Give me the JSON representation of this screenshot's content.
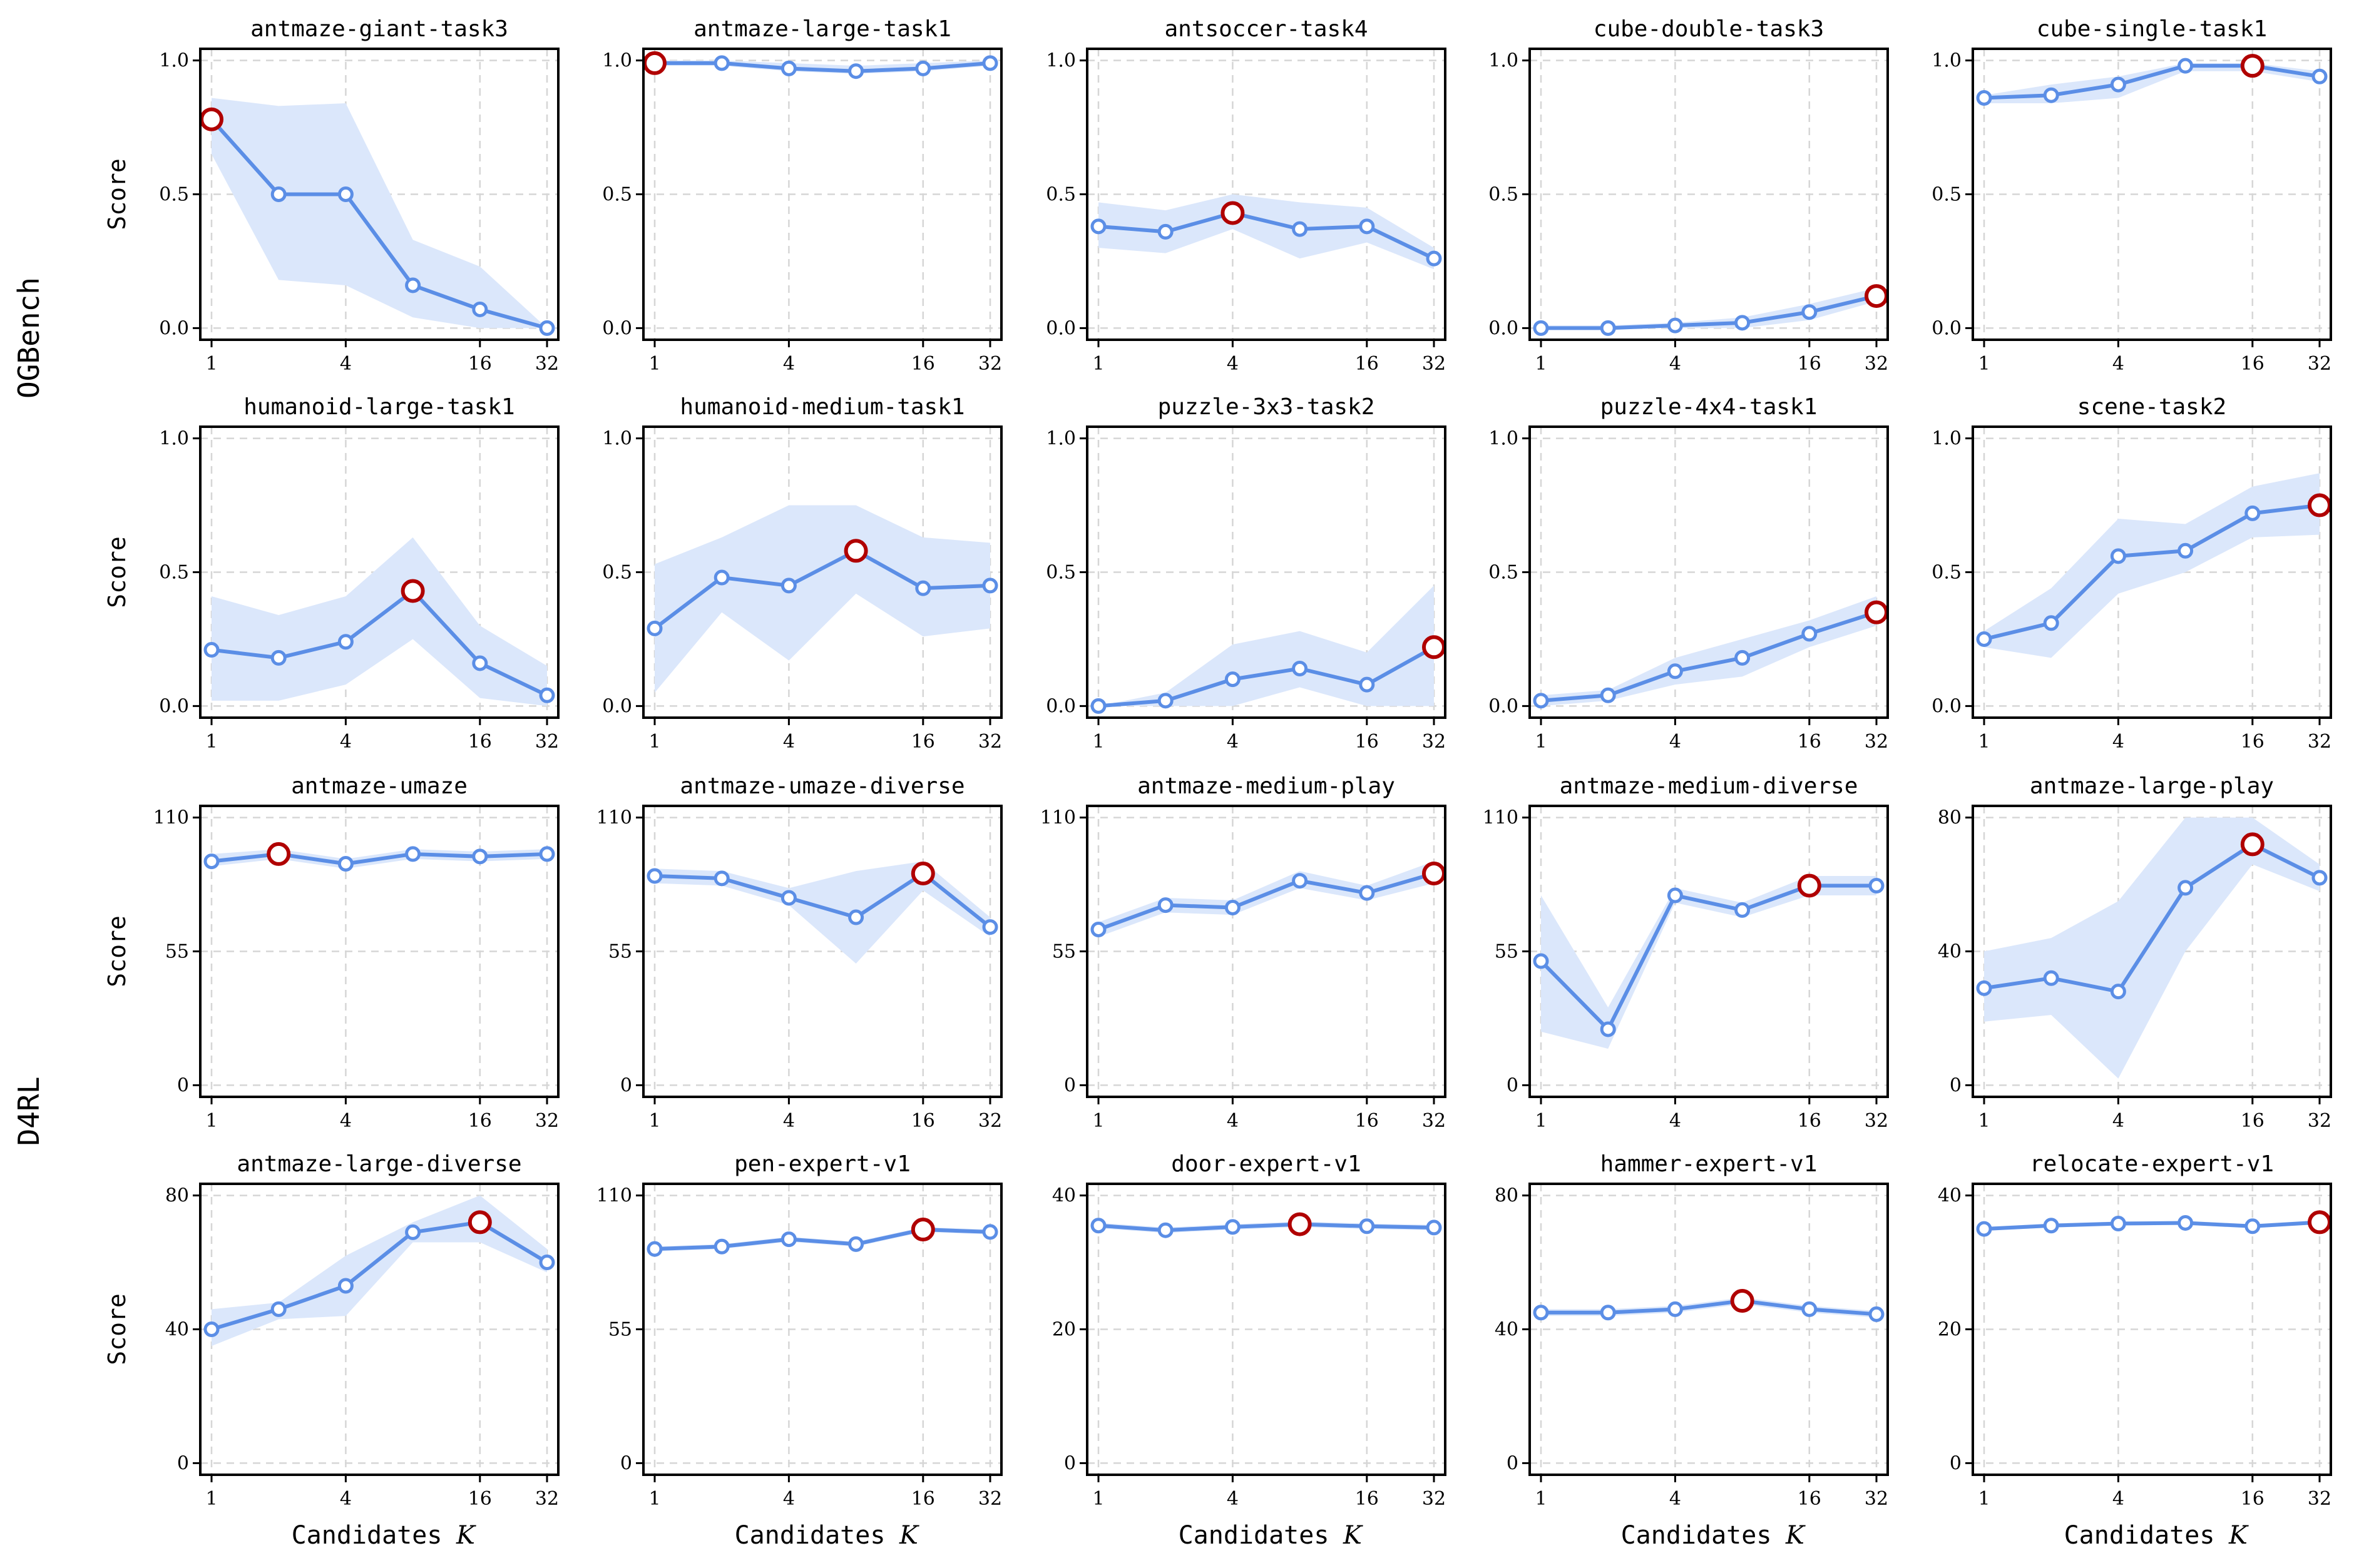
{
  "colors": {
    "line": "#5b8ee6",
    "band": "#dbe7fb",
    "best": "#b00000",
    "grid": "#d6d6d6",
    "frame": "#000000"
  },
  "labels": {
    "ylabel": "Score",
    "xlabel": "Candidates",
    "xsymbol": "K",
    "group_top": "OGBench",
    "group_bottom": "D4RL"
  },
  "chart_data": [
    {
      "type": "line",
      "title": "antmaze-giant-task3",
      "xlabel": "",
      "ylabel": "Score",
      "x": [
        1,
        2,
        4,
        8,
        16,
        32
      ],
      "xticks": [
        1,
        4,
        16,
        32
      ],
      "ylim": [
        0,
        1
      ],
      "yticks": [
        0,
        0.5,
        1
      ],
      "ytick_labels": [
        "0.0",
        "0.5",
        "1.0"
      ],
      "y": [
        0.78,
        0.5,
        0.5,
        0.16,
        0.07,
        0.0
      ],
      "band_lo": [
        0.65,
        0.18,
        0.16,
        0.04,
        0.0,
        0.0
      ],
      "band_hi": [
        0.86,
        0.83,
        0.84,
        0.33,
        0.23,
        0.0
      ],
      "best_index": 0
    },
    {
      "type": "line",
      "title": "antmaze-large-task1",
      "xlabel": "",
      "ylabel": "",
      "x": [
        1,
        2,
        4,
        8,
        16,
        32
      ],
      "xticks": [
        1,
        4,
        16,
        32
      ],
      "ylim": [
        0,
        1
      ],
      "yticks": [
        0,
        0.5,
        1
      ],
      "ytick_labels": [
        "0.0",
        "0.5",
        "1.0"
      ],
      "y": [
        0.99,
        0.99,
        0.97,
        0.96,
        0.97,
        0.99
      ],
      "band_lo": [
        0.98,
        0.98,
        0.96,
        0.95,
        0.96,
        0.98
      ],
      "band_hi": [
        1.0,
        1.0,
        0.99,
        0.98,
        0.99,
        1.0
      ],
      "best_index": 0
    },
    {
      "type": "line",
      "title": "antsoccer-task4",
      "xlabel": "",
      "ylabel": "",
      "x": [
        1,
        2,
        4,
        8,
        16,
        32
      ],
      "xticks": [
        1,
        4,
        16,
        32
      ],
      "ylim": [
        0,
        1
      ],
      "yticks": [
        0,
        0.5,
        1
      ],
      "ytick_labels": [
        "0.0",
        "0.5",
        "1.0"
      ],
      "y": [
        0.38,
        0.36,
        0.43,
        0.37,
        0.38,
        0.26
      ],
      "band_lo": [
        0.3,
        0.28,
        0.37,
        0.26,
        0.32,
        0.22
      ],
      "band_hi": [
        0.47,
        0.44,
        0.5,
        0.47,
        0.45,
        0.3
      ],
      "best_index": 2
    },
    {
      "type": "line",
      "title": "cube-double-task3",
      "xlabel": "",
      "ylabel": "",
      "x": [
        1,
        2,
        4,
        8,
        16,
        32
      ],
      "xticks": [
        1,
        4,
        16,
        32
      ],
      "ylim": [
        0,
        1
      ],
      "yticks": [
        0,
        0.5,
        1
      ],
      "ytick_labels": [
        "0.0",
        "0.5",
        "1.0"
      ],
      "y": [
        0.0,
        0.0,
        0.01,
        0.02,
        0.06,
        0.12
      ],
      "band_lo": [
        0.0,
        0.0,
        0.0,
        0.0,
        0.03,
        0.1
      ],
      "band_hi": [
        0.01,
        0.01,
        0.02,
        0.04,
        0.09,
        0.15
      ],
      "best_index": 5
    },
    {
      "type": "line",
      "title": "cube-single-task1",
      "xlabel": "",
      "ylabel": "",
      "x": [
        1,
        2,
        4,
        8,
        16,
        32
      ],
      "xticks": [
        1,
        4,
        16,
        32
      ],
      "ylim": [
        0,
        1
      ],
      "yticks": [
        0,
        0.5,
        1
      ],
      "ytick_labels": [
        "0.0",
        "0.5",
        "1.0"
      ],
      "y": [
        0.86,
        0.87,
        0.91,
        0.98,
        0.98,
        0.94
      ],
      "band_lo": [
        0.84,
        0.84,
        0.86,
        0.96,
        0.96,
        0.92
      ],
      "band_hi": [
        0.87,
        0.91,
        0.94,
        0.99,
        0.99,
        0.96
      ],
      "best_index": 4
    },
    {
      "type": "line",
      "title": "humanoid-large-task1",
      "xlabel": "",
      "ylabel": "Score",
      "x": [
        1,
        2,
        4,
        8,
        16,
        32
      ],
      "xticks": [
        1,
        4,
        16,
        32
      ],
      "ylim": [
        0,
        1
      ],
      "yticks": [
        0,
        0.5,
        1
      ],
      "ytick_labels": [
        "0.0",
        "0.5",
        "1.0"
      ],
      "y": [
        0.21,
        0.18,
        0.24,
        0.43,
        0.16,
        0.04
      ],
      "band_lo": [
        0.02,
        0.02,
        0.08,
        0.25,
        0.03,
        0.0
      ],
      "band_hi": [
        0.41,
        0.34,
        0.41,
        0.63,
        0.3,
        0.15
      ],
      "best_index": 3
    },
    {
      "type": "line",
      "title": "humanoid-medium-task1",
      "xlabel": "",
      "ylabel": "",
      "x": [
        1,
        2,
        4,
        8,
        16,
        32
      ],
      "xticks": [
        1,
        4,
        16,
        32
      ],
      "ylim": [
        0,
        1
      ],
      "yticks": [
        0,
        0.5,
        1
      ],
      "ytick_labels": [
        "0.0",
        "0.5",
        "1.0"
      ],
      "y": [
        0.29,
        0.48,
        0.45,
        0.58,
        0.44,
        0.45
      ],
      "band_lo": [
        0.05,
        0.35,
        0.17,
        0.42,
        0.26,
        0.29
      ],
      "band_hi": [
        0.53,
        0.63,
        0.75,
        0.75,
        0.63,
        0.61
      ],
      "best_index": 3
    },
    {
      "type": "line",
      "title": "puzzle-3x3-task2",
      "xlabel": "",
      "ylabel": "",
      "x": [
        1,
        2,
        4,
        8,
        16,
        32
      ],
      "xticks": [
        1,
        4,
        16,
        32
      ],
      "ylim": [
        0,
        1
      ],
      "yticks": [
        0,
        0.5,
        1
      ],
      "ytick_labels": [
        "0.0",
        "0.5",
        "1.0"
      ],
      "y": [
        0.0,
        0.02,
        0.1,
        0.14,
        0.08,
        0.22
      ],
      "band_lo": [
        0.0,
        0.0,
        0.0,
        0.07,
        0.0,
        0.0
      ],
      "band_hi": [
        0.0,
        0.05,
        0.23,
        0.28,
        0.2,
        0.45
      ],
      "best_index": 5
    },
    {
      "type": "line",
      "title": "puzzle-4x4-task1",
      "xlabel": "",
      "ylabel": "",
      "x": [
        1,
        2,
        4,
        8,
        16,
        32
      ],
      "xticks": [
        1,
        4,
        16,
        32
      ],
      "ylim": [
        0,
        1
      ],
      "yticks": [
        0,
        0.5,
        1
      ],
      "ytick_labels": [
        "0.0",
        "0.5",
        "1.0"
      ],
      "y": [
        0.02,
        0.04,
        0.13,
        0.18,
        0.27,
        0.35
      ],
      "band_lo": [
        0.0,
        0.02,
        0.08,
        0.11,
        0.22,
        0.3
      ],
      "band_hi": [
        0.04,
        0.06,
        0.18,
        0.25,
        0.32,
        0.41
      ],
      "best_index": 5
    },
    {
      "type": "line",
      "title": "scene-task2",
      "xlabel": "",
      "ylabel": "",
      "x": [
        1,
        2,
        4,
        8,
        16,
        32
      ],
      "xticks": [
        1,
        4,
        16,
        32
      ],
      "ylim": [
        0,
        1
      ],
      "yticks": [
        0,
        0.5,
        1
      ],
      "ytick_labels": [
        "0.0",
        "0.5",
        "1.0"
      ],
      "y": [
        0.25,
        0.31,
        0.56,
        0.58,
        0.72,
        0.75
      ],
      "band_lo": [
        0.22,
        0.18,
        0.42,
        0.5,
        0.63,
        0.64
      ],
      "band_hi": [
        0.28,
        0.44,
        0.7,
        0.68,
        0.82,
        0.87
      ],
      "best_index": 5
    },
    {
      "type": "line",
      "title": "antmaze-umaze",
      "xlabel": "",
      "ylabel": "Score",
      "x": [
        1,
        2,
        4,
        8,
        16,
        32
      ],
      "xticks": [
        1,
        4,
        16,
        32
      ],
      "ylim": [
        0,
        110
      ],
      "yticks": [
        0,
        55,
        110
      ],
      "ytick_labels": [
        "0",
        "55",
        "110"
      ],
      "y": [
        92,
        95,
        91,
        95,
        94,
        95
      ],
      "band_lo": [
        90,
        93,
        89,
        93,
        92,
        93
      ],
      "band_hi": [
        95,
        97,
        93,
        97,
        96,
        97
      ],
      "best_index": 1
    },
    {
      "type": "line",
      "title": "antmaze-umaze-diverse",
      "xlabel": "",
      "ylabel": "",
      "x": [
        1,
        2,
        4,
        8,
        16,
        32
      ],
      "xticks": [
        1,
        4,
        16,
        32
      ],
      "ylim": [
        0,
        110
      ],
      "yticks": [
        0,
        55,
        110
      ],
      "ytick_labels": [
        "0",
        "55",
        "110"
      ],
      "y": [
        86,
        85,
        77,
        69,
        87,
        65
      ],
      "band_lo": [
        83,
        82,
        74,
        50,
        80,
        61
      ],
      "band_hi": [
        89,
        88,
        81,
        88,
        92,
        69
      ],
      "best_index": 4
    },
    {
      "type": "line",
      "title": "antmaze-medium-play",
      "xlabel": "",
      "ylabel": "",
      "x": [
        1,
        2,
        4,
        8,
        16,
        32
      ],
      "xticks": [
        1,
        4,
        16,
        32
      ],
      "ylim": [
        0,
        110
      ],
      "yticks": [
        0,
        55,
        110
      ],
      "ytick_labels": [
        "0",
        "55",
        "110"
      ],
      "y": [
        64,
        74,
        73,
        84,
        79,
        87
      ],
      "band_lo": [
        61,
        71,
        70,
        81,
        76,
        83
      ],
      "band_hi": [
        67,
        77,
        76,
        88,
        82,
        92
      ],
      "best_index": 5
    },
    {
      "type": "line",
      "title": "antmaze-medium-diverse",
      "xlabel": "",
      "ylabel": "",
      "x": [
        1,
        2,
        4,
        8,
        16,
        32
      ],
      "xticks": [
        1,
        4,
        16,
        32
      ],
      "ylim": [
        0,
        110
      ],
      "yticks": [
        0,
        55,
        110
      ],
      "ytick_labels": [
        "0",
        "55",
        "110"
      ],
      "y": [
        51,
        23,
        78,
        72,
        82,
        82
      ],
      "band_lo": [
        22,
        15,
        75,
        69,
        78,
        78
      ],
      "band_hi": [
        78,
        32,
        81,
        75,
        86,
        86
      ],
      "best_index": 4
    },
    {
      "type": "line",
      "title": "antmaze-large-play",
      "xlabel": "",
      "ylabel": "",
      "x": [
        1,
        2,
        4,
        8,
        16,
        32
      ],
      "xticks": [
        1,
        4,
        16,
        32
      ],
      "ylim": [
        0,
        80
      ],
      "yticks": [
        0,
        40,
        80
      ],
      "ytick_labels": [
        "0",
        "40",
        "80"
      ],
      "y": [
        29,
        32,
        28,
        59,
        72,
        62
      ],
      "band_lo": [
        19,
        21,
        2,
        40,
        66,
        58
      ],
      "band_hi": [
        40,
        44,
        55,
        80,
        80,
        66
      ],
      "best_index": 4
    },
    {
      "type": "line",
      "title": "antmaze-large-diverse",
      "xlabel": "",
      "ylabel": "Score",
      "x": [
        1,
        2,
        4,
        8,
        16,
        32
      ],
      "xticks": [
        1,
        4,
        16,
        32
      ],
      "ylim": [
        0,
        80
      ],
      "yticks": [
        0,
        40,
        80
      ],
      "ytick_labels": [
        "0",
        "40",
        "80"
      ],
      "y": [
        40,
        46,
        53,
        69,
        72,
        60
      ],
      "band_lo": [
        35,
        43,
        44,
        66,
        66,
        57
      ],
      "band_hi": [
        46,
        48,
        62,
        72,
        80,
        64
      ],
      "best_index": 4
    },
    {
      "type": "line",
      "title": "pen-expert-v1",
      "xlabel": "",
      "ylabel": "",
      "x": [
        1,
        2,
        4,
        8,
        16,
        32
      ],
      "xticks": [
        1,
        4,
        16,
        32
      ],
      "ylim": [
        0,
        110
      ],
      "yticks": [
        0,
        55,
        110
      ],
      "ytick_labels": [
        "0",
        "55",
        "110"
      ],
      "y": [
        88,
        89,
        92,
        90,
        96,
        95
      ],
      "band_lo": [
        87,
        88,
        91,
        89,
        95,
        94
      ],
      "band_hi": [
        89,
        90,
        93,
        91,
        97,
        96
      ],
      "best_index": 4
    },
    {
      "type": "line",
      "title": "door-expert-v1",
      "xlabel": "",
      "ylabel": "",
      "x": [
        1,
        2,
        4,
        8,
        16,
        32
      ],
      "xticks": [
        1,
        4,
        16,
        32
      ],
      "ylim": [
        0,
        40
      ],
      "yticks": [
        0,
        20,
        40
      ],
      "ytick_labels": [
        "0",
        "20",
        "40"
      ],
      "y": [
        35.5,
        34.8,
        35.3,
        35.7,
        35.4,
        35.2
      ],
      "band_lo": [
        35.1,
        34.4,
        34.9,
        35.3,
        35.0,
        34.8
      ],
      "band_hi": [
        35.9,
        35.2,
        35.7,
        36.1,
        35.8,
        35.6
      ],
      "best_index": 3
    },
    {
      "type": "line",
      "title": "hammer-expert-v1",
      "xlabel": "",
      "ylabel": "",
      "x": [
        1,
        2,
        4,
        8,
        16,
        32
      ],
      "xticks": [
        1,
        4,
        16,
        32
      ],
      "ylim": [
        0,
        80
      ],
      "yticks": [
        0,
        40,
        80
      ],
      "ytick_labels": [
        "0",
        "40",
        "80"
      ],
      "y": [
        45,
        45,
        46,
        48.5,
        46,
        44.5
      ],
      "band_lo": [
        44,
        44,
        45,
        47.5,
        45,
        43.5
      ],
      "band_hi": [
        46,
        46,
        47,
        49.5,
        47,
        45.5
      ],
      "best_index": 3
    },
    {
      "type": "line",
      "title": "relocate-expert-v1",
      "xlabel": "",
      "ylabel": "",
      "x": [
        1,
        2,
        4,
        8,
        16,
        32
      ],
      "xticks": [
        1,
        4,
        16,
        32
      ],
      "ylim": [
        0,
        40
      ],
      "yticks": [
        0,
        20,
        40
      ],
      "ytick_labels": [
        "0",
        "20",
        "40"
      ],
      "y": [
        35,
        35.5,
        35.8,
        35.9,
        35.4,
        36
      ],
      "band_lo": [
        34.7,
        35.2,
        35.5,
        35.6,
        35.1,
        35.7
      ],
      "band_hi": [
        35.3,
        35.8,
        36.1,
        36.2,
        35.7,
        36.3
      ],
      "best_index": 5
    }
  ]
}
